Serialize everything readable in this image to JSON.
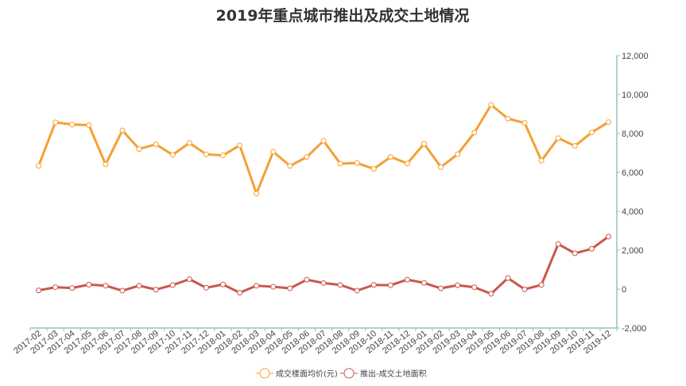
{
  "chart_data": {
    "type": "line",
    "title": "2019年重点城市推出及成交土地情况",
    "xlabel": "",
    "ylabel": "",
    "categories": [
      "2017-02",
      "2017-03",
      "2017-04",
      "2017-05",
      "2017-06",
      "2017-07",
      "2017-08",
      "2017-09",
      "2017-10",
      "2017-11",
      "2017-12",
      "2018-01",
      "2018-02",
      "2018-03",
      "2018-04",
      "2018-05",
      "2018-06",
      "2018-07",
      "2018-08",
      "2018-09",
      "2018-10",
      "2018-11",
      "2018-12",
      "2019-01",
      "2019-02",
      "2019-03",
      "2019-04",
      "2019-05",
      "2019-06",
      "2019-07",
      "2019-08",
      "2019-09",
      "2019-10",
      "2019-11",
      "2019-12"
    ],
    "ylim": [
      -2000,
      12000
    ],
    "yticks": [
      "-2,000",
      "0",
      "2,000",
      "4,000",
      "6,000",
      "8,000",
      "10,000",
      "12,000"
    ],
    "y_axis_position": "right",
    "grid": false,
    "legend_position": "bottom",
    "series": [
      {
        "name": "成交楼面均价(元)",
        "color": "#f5a033",
        "values": [
          6330,
          8570,
          8460,
          8430,
          6410,
          8160,
          7200,
          7440,
          6900,
          7510,
          6930,
          6870,
          7390,
          4910,
          7060,
          6330,
          6790,
          7620,
          6450,
          6480,
          6180,
          6790,
          6460,
          7470,
          6270,
          6930,
          8040,
          9470,
          8760,
          8540,
          6600,
          7760,
          7360,
          8050,
          8580
        ]
      },
      {
        "name": "推出-成交土地面积",
        "color": "#c9574c",
        "values": [
          -65,
          95,
          55,
          230,
          175,
          -80,
          175,
          -25,
          205,
          510,
          70,
          240,
          -185,
          175,
          120,
          40,
          485,
          310,
          215,
          -80,
          215,
          200,
          485,
          320,
          40,
          200,
          95,
          -240,
          565,
          -10,
          215,
          2315,
          1840,
          2070,
          2700
        ]
      }
    ],
    "axis_color": "#8cc5c0"
  }
}
